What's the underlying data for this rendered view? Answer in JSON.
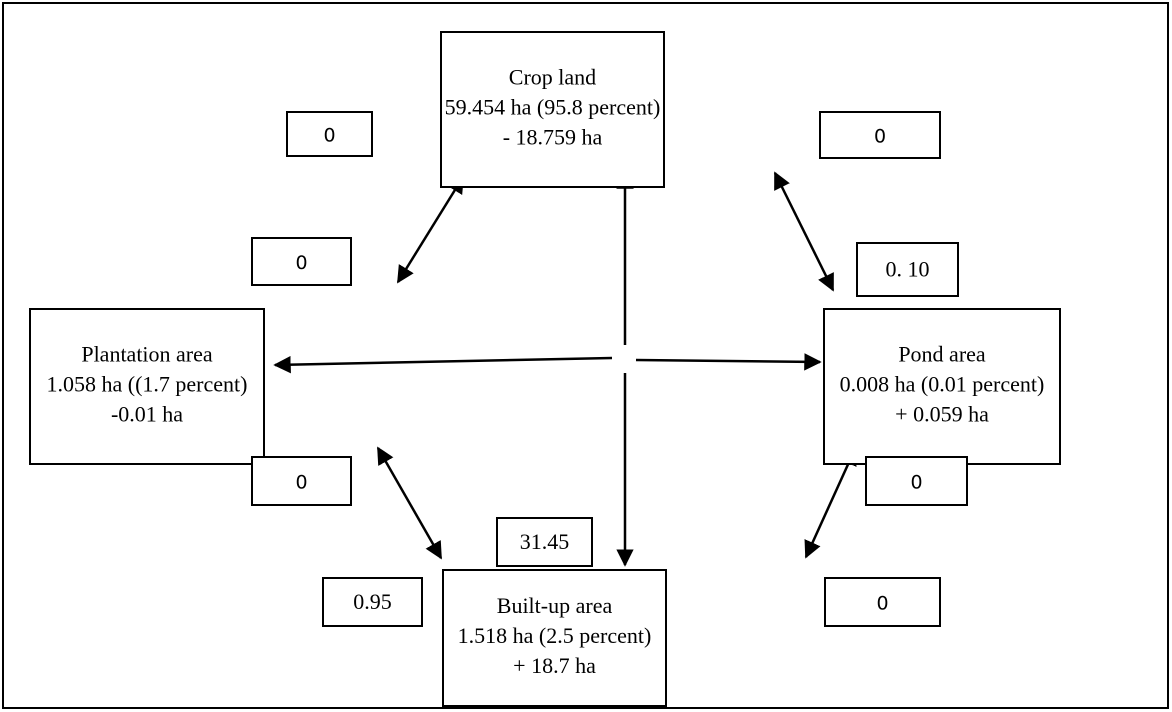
{
  "nodes": [
    {
      "lines": [
        "Crop land",
        "59.454 ha (95.8 percent)",
        "- 18.759 ha"
      ]
    },
    {
      "lines": [
        "Plantation area",
        "1.058 ha ((1.7 percent)",
        "-0.01 ha"
      ]
    },
    {
      "lines": [
        "Pond area",
        "0.008 ha (0.01 percent)",
        "+ 0.059 ha"
      ]
    },
    {
      "lines": [
        "Built-up area",
        "1.518 ha (2.5 percent)",
        "+ 18.7 ha"
      ]
    }
  ],
  "edge_labels": [
    "0",
    "0",
    "0",
    "0. 10",
    "0",
    "0",
    "31.45",
    "0.95",
    "0"
  ]
}
